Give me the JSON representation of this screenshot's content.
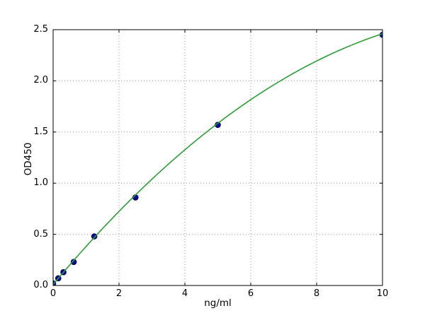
{
  "chart_data": {
    "type": "scatter",
    "title": "",
    "xlabel": "ng/ml",
    "ylabel": "OD450",
    "xlim": [
      0,
      10
    ],
    "ylim": [
      0,
      2.5
    ],
    "x_ticks": [
      0,
      2,
      4,
      6,
      8,
      10
    ],
    "x_tick_labels": [
      "0",
      "2",
      "4",
      "6",
      "8",
      "10"
    ],
    "y_ticks": [
      0,
      0.5,
      1,
      1.5,
      2,
      2.5
    ],
    "y_tick_labels": [
      "0.0",
      "0.5",
      "1.0",
      "1.5",
      "2.0",
      "2.5"
    ],
    "grid": "dotted",
    "legend": "none",
    "series": [
      {
        "name": "standard-points",
        "type": "scatter",
        "marker": "circle",
        "color": "#0b0b8f",
        "edge_color": "#000058",
        "x": [
          0,
          0.156,
          0.313,
          0.625,
          1.25,
          2.5,
          5,
          10
        ],
        "y": [
          0.02,
          0.07,
          0.13,
          0.23,
          0.48,
          0.86,
          1.57,
          2.45
        ]
      },
      {
        "name": "fit-curve",
        "type": "line",
        "color": "#2e9b3a",
        "fit_poly": [
          0.01,
          0.385,
          -0.014
        ],
        "x_range": [
          0,
          10
        ]
      }
    ],
    "colors": {
      "grid": "#999999",
      "axis": "#000000",
      "background": "#ffffff"
    }
  }
}
